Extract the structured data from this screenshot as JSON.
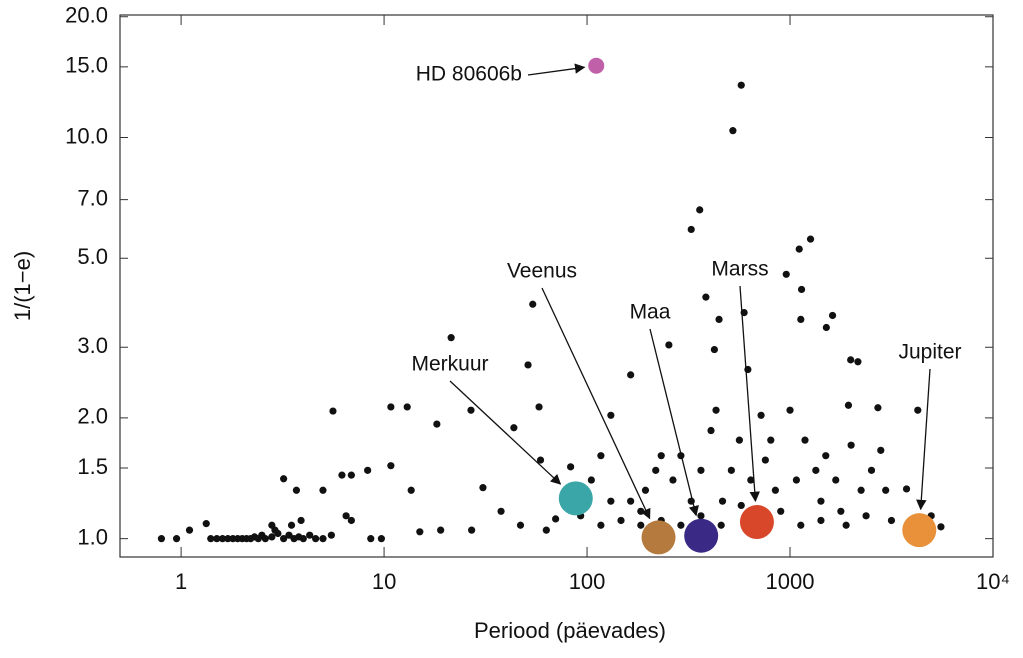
{
  "chart_data": {
    "type": "scatter",
    "xlabel": "Periood (päevades)",
    "ylabel": "1/(1−e)",
    "xscale": "log",
    "yscale": "log",
    "xlim": [
      0.5,
      10000
    ],
    "ylim": [
      0.9,
      20.2
    ],
    "xticks": [
      1,
      10,
      100,
      1000,
      {
        "value": 10000,
        "label": "10⁴"
      }
    ],
    "yticks": [
      {
        "value": 1,
        "label": "1.0"
      },
      {
        "value": 1.5,
        "label": "1.5"
      },
      {
        "value": 2,
        "label": "2.0"
      },
      {
        "value": 3,
        "label": "3.0"
      },
      {
        "value": 5,
        "label": "5.0"
      },
      {
        "value": 7,
        "label": "7.0"
      },
      {
        "value": 10,
        "label": "10.0"
      },
      {
        "value": 15,
        "label": "15.0"
      },
      {
        "value": 20,
        "label": "20.0"
      }
    ],
    "series": [
      {
        "color": "#111111",
        "x": [
          0.8,
          0.95,
          1.1,
          1.33,
          1.4,
          1.5,
          1.6,
          1.7,
          1.8,
          1.9,
          2.0,
          2.1,
          2.2,
          2.3,
          2.4,
          2.5,
          2.6,
          2.8,
          3.0,
          3.2,
          3.4,
          3.6,
          3.8,
          4.0,
          4.3,
          4.6,
          5.0,
          3.2,
          3.7,
          5.0,
          5.6,
          6.2,
          6.9,
          8.3,
          10.8,
          13.0,
          13.6,
          10.8,
          18.2,
          21.4,
          26.8,
          30.7,
          37.7,
          43.6,
          51.2,
          54,
          58,
          59,
          70,
          83,
          117,
          105,
          131,
          164,
          184,
          232,
          253,
          326,
          359,
          385,
          424,
          447,
          523,
          575,
          594,
          620,
          720,
          804,
          958,
          1110,
          1262,
          1140,
          1130,
          1620,
          1510,
          1990,
          2160,
          1940,
          2710,
          4260,
          3750,
          2960,
          5540,
          4960,
          147,
          164,
          194,
          218,
          265,
          290,
          326,
          364,
          408,
          432,
          465,
          514,
          563,
          641,
          756,
          847,
          900,
          1000,
          1075,
          1185,
          1340,
          1420,
          1500,
          1680,
          1780,
          2000,
          2240,
          2520,
          2800,
          3160,
          720,
          575,
          458,
          364,
          290,
          232,
          184,
          1130,
          1420,
          1890,
          2370,
          117,
          131,
          93,
          63,
          47,
          27,
          19,
          15,
          9.7,
          8.6,
          6.5,
          6.9,
          5.5,
          3.9,
          3.5,
          2.9,
          2.8
        ],
        "y": [
          1.0,
          1.0,
          1.05,
          1.09,
          1.0,
          1.0,
          1.0,
          1.0,
          1.0,
          1.0,
          1.0,
          1.0,
          1.0,
          1.01,
          1.0,
          1.02,
          1.0,
          1.01,
          1.03,
          1.0,
          1.02,
          1.0,
          1.01,
          1.0,
          1.02,
          1.0,
          1.0,
          1.41,
          1.32,
          1.32,
          2.08,
          1.44,
          1.44,
          1.48,
          2.13,
          2.13,
          1.32,
          1.52,
          1.93,
          3.17,
          2.09,
          1.34,
          1.17,
          1.89,
          2.71,
          3.84,
          2.13,
          1.57,
          1.12,
          1.51,
          1.61,
          1.4,
          2.03,
          2.56,
          1.17,
          1.61,
          3.04,
          5.9,
          6.6,
          4.0,
          2.96,
          3.52,
          10.4,
          13.5,
          3.66,
          2.64,
          2.03,
          1.76,
          4.56,
          5.27,
          5.58,
          4.18,
          3.52,
          3.6,
          3.36,
          2.79,
          2.76,
          2.15,
          2.12,
          2.09,
          1.33,
          1.32,
          1.07,
          1.14,
          1.11,
          1.24,
          1.32,
          1.48,
          1.4,
          1.61,
          1.24,
          1.48,
          1.86,
          2.09,
          1.24,
          1.48,
          1.76,
          1.4,
          1.57,
          1.32,
          1.17,
          2.09,
          1.4,
          1.76,
          1.48,
          1.24,
          1.61,
          1.4,
          1.17,
          1.71,
          1.32,
          1.48,
          1.66,
          1.11,
          1.11,
          1.21,
          1.08,
          1.14,
          1.08,
          1.11,
          1.08,
          1.08,
          1.11,
          1.08,
          1.14,
          1.08,
          1.24,
          1.14,
          1.05,
          1.08,
          1.05,
          1.05,
          1.04,
          1.0,
          1.0,
          1.14,
          1.11,
          1.02,
          1.11,
          1.08,
          1.05,
          1.08
        ]
      }
    ],
    "annotations": [
      {
        "text": "HD 80606b",
        "x": 111,
        "y": 15.1,
        "color": "#c060a8"
      },
      {
        "text": "Merkuur",
        "x": 88,
        "y": 1.26,
        "color": "#3aa6a8"
      },
      {
        "text": "Veenus",
        "x": 225,
        "y": 1.007,
        "color": "#b57a3d"
      },
      {
        "text": "Maa",
        "x": 365,
        "y": 1.017,
        "color": "#3a2a86"
      },
      {
        "text": "Marss",
        "x": 687,
        "y": 1.1,
        "color": "#d9472b"
      },
      {
        "text": "Jupiter",
        "x": 4333,
        "y": 1.05,
        "color": "#e8913a"
      }
    ]
  }
}
